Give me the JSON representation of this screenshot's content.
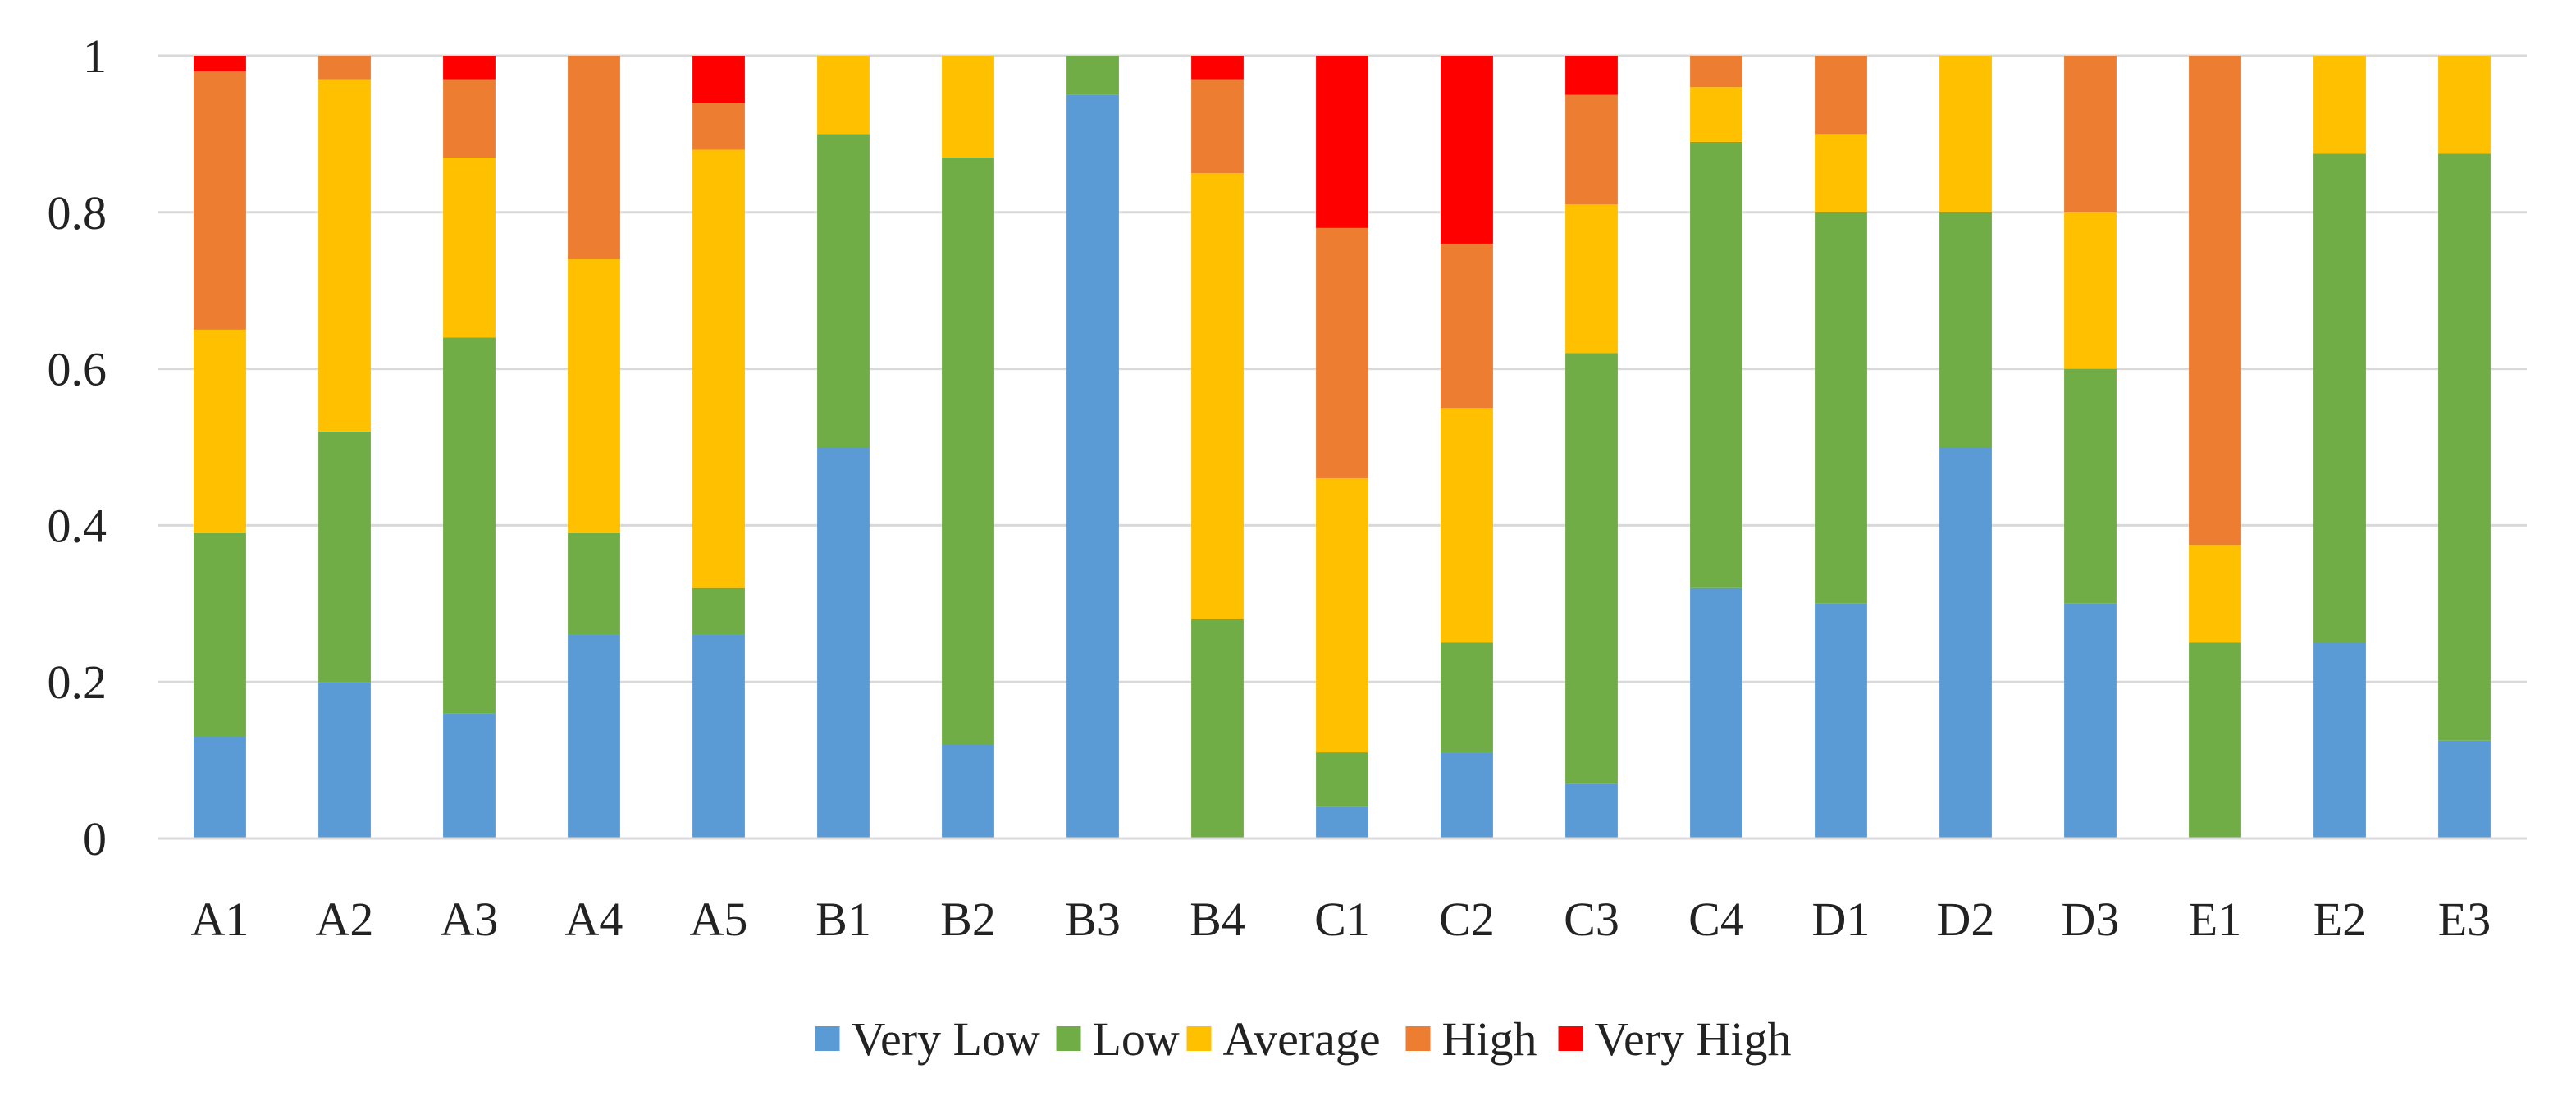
{
  "chart_data": {
    "type": "bar",
    "stacked": true,
    "title": "",
    "xlabel": "",
    "ylabel": "",
    "ylim": [
      0,
      1
    ],
    "yticks": [
      "0",
      "0.2",
      "0.4",
      "0.6",
      "0.8",
      "1"
    ],
    "categories": [
      "A1",
      "A2",
      "A3",
      "A4",
      "A5",
      "B1",
      "B2",
      "B3",
      "B4",
      "C1",
      "C2",
      "C3",
      "C4",
      "D1",
      "D2",
      "D3",
      "E1",
      "E2",
      "E3"
    ],
    "grid": true,
    "legend_position": "bottom",
    "series": [
      {
        "name": "Very Low",
        "color": "#5B9BD5",
        "values": [
          0.13,
          0.2,
          0.16,
          0.26,
          0.26,
          0.5,
          0.12,
          0.95,
          0.0,
          0.04,
          0.11,
          0.07,
          0.32,
          0.3,
          0.5,
          0.3,
          0.0,
          0.25,
          0.125
        ]
      },
      {
        "name": "Low",
        "color": "#70AD47",
        "values": [
          0.26,
          0.32,
          0.48,
          0.13,
          0.06,
          0.4,
          0.75,
          0.05,
          0.28,
          0.07,
          0.14,
          0.55,
          0.57,
          0.5,
          0.3,
          0.3,
          0.25,
          0.625,
          0.75
        ]
      },
      {
        "name": "Average",
        "color": "#FFC000",
        "values": [
          0.26,
          0.45,
          0.23,
          0.35,
          0.56,
          0.1,
          0.13,
          0.0,
          0.57,
          0.35,
          0.3,
          0.19,
          0.07,
          0.1,
          0.2,
          0.2,
          0.125,
          0.125,
          0.125
        ]
      },
      {
        "name": "High",
        "color": "#ED7D31",
        "values": [
          0.33,
          0.03,
          0.1,
          0.26,
          0.06,
          0.0,
          0.0,
          0.0,
          0.12,
          0.32,
          0.21,
          0.14,
          0.04,
          0.1,
          0.0,
          0.2,
          0.625,
          0.0,
          0.0
        ]
      },
      {
        "name": "Very High",
        "color": "#FF0000",
        "values": [
          0.02,
          0.0,
          0.03,
          0.0,
          0.06,
          0.0,
          0.0,
          0.0,
          0.03,
          0.22,
          0.24,
          0.05,
          0.0,
          0.0,
          0.0,
          0.0,
          0.0,
          0.0,
          0.0
        ]
      }
    ]
  }
}
